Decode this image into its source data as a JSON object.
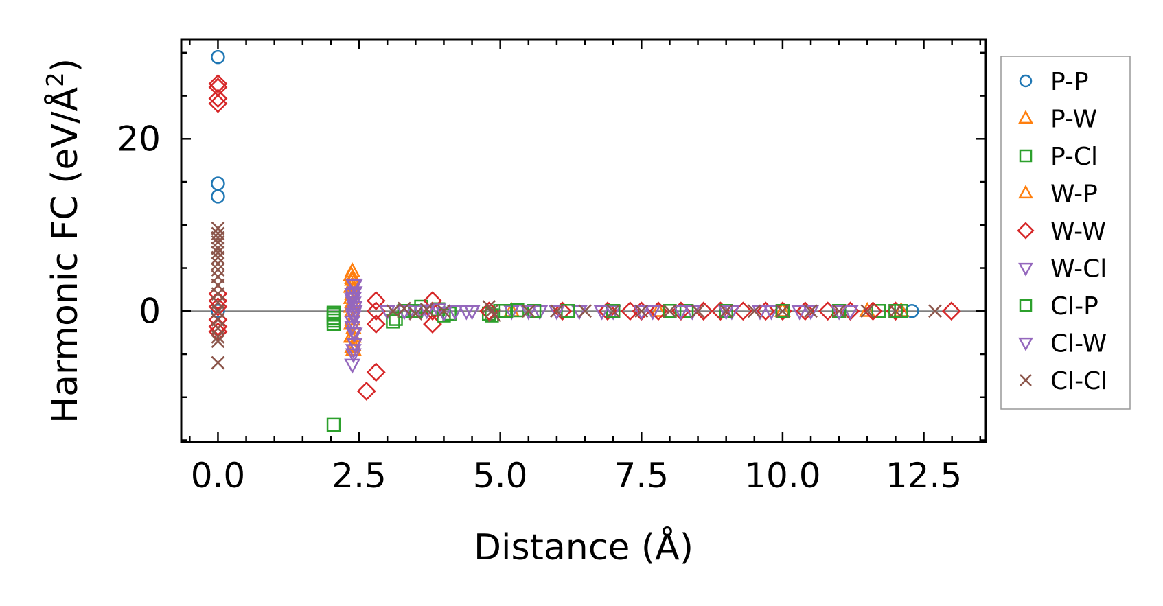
{
  "chart_data": {
    "type": "scatter",
    "title": "",
    "xlabel": "Distance (Å)",
    "ylabel_main": "Harmonic FC (eV/Å",
    "ylabel_sup": "2",
    "ylabel_close": ")",
    "xlim": [
      -0.65,
      13.6
    ],
    "ylim": [
      -15.2,
      31.5
    ],
    "xticks": [
      0.0,
      2.5,
      5.0,
      7.5,
      10.0,
      12.5
    ],
    "xtick_labels": [
      "0.0",
      "2.5",
      "5.0",
      "7.5",
      "10.0",
      "12.5"
    ],
    "yticks": [
      0,
      20
    ],
    "ytick_labels": [
      "0",
      "20"
    ],
    "zero_line": true,
    "grid": false,
    "legend_position": "right, outside plot area",
    "series": [
      {
        "name": "P-P",
        "marker": "circle",
        "color": "#1f77b4",
        "x": [
          0,
          0,
          0,
          0,
          12.29
        ],
        "y": [
          29.5,
          14.8,
          13.3,
          0.0,
          0.0
        ]
      },
      {
        "name": "P-W",
        "marker": "triangle-up",
        "color": "#ff7f0e",
        "x": [
          2.38,
          2.38,
          2.38,
          2.38,
          2.38,
          2.38,
          2.38,
          2.4,
          2.4,
          2.4,
          2.4,
          5.2,
          7.8,
          10.0,
          11.5,
          12.1
        ],
        "y": [
          4.6,
          3.8,
          3.0,
          2.0,
          1.0,
          0.0,
          -1.0,
          -2.0,
          -3.0,
          -4.0,
          -4.5,
          0.0,
          0.0,
          0.0,
          0.0,
          0.0
        ]
      },
      {
        "name": "P-Cl",
        "marker": "square",
        "color": "#2ca02c",
        "x": [
          2.05,
          2.05,
          2.05,
          2.05,
          3.1,
          3.3,
          3.6,
          3.9,
          4.1,
          4.8,
          5.0,
          5.3,
          8.3,
          11.7,
          12.1
        ],
        "y": [
          -13.2,
          -0.2,
          -0.8,
          -1.5,
          -1.2,
          0.0,
          0.5,
          0.2,
          -0.3,
          -0.3,
          0.0,
          0.1,
          0.0,
          0.0,
          0.0
        ]
      },
      {
        "name": "W-P",
        "marker": "triangle-up",
        "color": "#ff7f0e",
        "x": [
          2.36,
          2.36,
          2.36,
          2.36,
          2.36,
          2.36,
          2.38,
          2.38
        ],
        "y": [
          4.2,
          2.8,
          1.5,
          0.5,
          -1.5,
          -3.0,
          -4.2,
          3.6
        ]
      },
      {
        "name": "W-W",
        "marker": "diamond",
        "color": "#d62728",
        "x": [
          0,
          0,
          0,
          0,
          0,
          0,
          0,
          0,
          0,
          0,
          2.63,
          2.8,
          2.8,
          2.8,
          2.8,
          3.8,
          3.8,
          3.8,
          4.8,
          6.1,
          6.9,
          7.3,
          7.5,
          7.8,
          8.2,
          8.6,
          8.9,
          9.3,
          9.7,
          10.0,
          10.4,
          10.8,
          11.2,
          11.6,
          12.0,
          12.99
        ],
        "y": [
          26.4,
          26.0,
          24.7,
          24.1,
          2.0,
          1.2,
          0.5,
          -1.0,
          -1.8,
          -2.4,
          -9.3,
          -7.1,
          1.2,
          0.0,
          -1.5,
          1.2,
          -1.5,
          0.0,
          0.0,
          0.0,
          0.0,
          0.0,
          0.0,
          0.0,
          0.0,
          0.0,
          0.0,
          0.0,
          0.0,
          0.0,
          0.0,
          0.0,
          0.0,
          0.0,
          0.0,
          0.0
        ]
      },
      {
        "name": "W-Cl",
        "marker": "triangle-down",
        "color": "#9467bd",
        "x": [
          2.38,
          2.4,
          2.42,
          2.4,
          2.38,
          2.42,
          2.4,
          2.38,
          2.42,
          2.4,
          2.38,
          2.42,
          2.4,
          3.4,
          3.6,
          3.9,
          4.2,
          4.4,
          5.2,
          5.7,
          6.4,
          7.0,
          7.7,
          8.4,
          9.1,
          9.8,
          10.5,
          11.2
        ],
        "y": [
          -6.2,
          -5.0,
          -3.8,
          -2.5,
          -1.2,
          0.0,
          1.0,
          2.0,
          3.0,
          -0.6,
          -1.8,
          0.5,
          1.5,
          0.0,
          0.0,
          0.2,
          0.0,
          0.0,
          0.0,
          0.0,
          0.0,
          0.0,
          0.0,
          0.0,
          0.0,
          0.0,
          0.0,
          0.0
        ]
      },
      {
        "name": "Cl-P",
        "marker": "square",
        "color": "#2ca02c",
        "x": [
          2.05,
          2.05,
          3.15,
          3.5,
          4.0,
          4.85,
          5.1,
          5.6,
          6.2,
          7.0,
          8.0,
          9.0,
          10.0,
          11.0,
          12.0
        ],
        "y": [
          -0.4,
          -1.1,
          -0.9,
          0.0,
          -0.5,
          -0.5,
          0.0,
          0.0,
          0.0,
          0.0,
          0.0,
          0.0,
          0.0,
          0.0,
          0.0
        ]
      },
      {
        "name": "Cl-W",
        "marker": "triangle-down",
        "color": "#9467bd",
        "x": [
          2.4,
          2.42,
          2.38,
          2.4,
          2.42,
          2.4,
          3.0,
          3.3,
          3.7,
          4.0,
          4.5,
          5.5,
          6.0,
          6.8,
          7.5,
          8.2,
          9.0,
          9.6,
          10.3,
          11.0
        ],
        "y": [
          3.1,
          2.2,
          1.4,
          -0.3,
          -2.6,
          -4.5,
          0.0,
          0.0,
          0.1,
          -0.2,
          0.0,
          0.0,
          0.0,
          0.0,
          0.0,
          0.0,
          0.0,
          0.0,
          0.0,
          0.0
        ]
      },
      {
        "name": "Cl-Cl",
        "marker": "x",
        "color": "#8c564b",
        "x": [
          0,
          0,
          0,
          0,
          0,
          0,
          0,
          0,
          0,
          0,
          0,
          0,
          0,
          0,
          0,
          0,
          0,
          0,
          0,
          3.1,
          3.3,
          3.5,
          3.7,
          4.0,
          4.8,
          4.85,
          4.9,
          5.5,
          6.0,
          6.5,
          7.0,
          7.5,
          8.0,
          8.5,
          9.0,
          9.5,
          10.0,
          10.5,
          11.0,
          11.5,
          12.0,
          12.7
        ],
        "y": [
          9.6,
          9.0,
          8.5,
          8.0,
          7.3,
          6.8,
          6.2,
          5.5,
          4.8,
          4.0,
          3.0,
          2.0,
          1.0,
          0.0,
          -1.0,
          -2.0,
          -3.0,
          -3.5,
          -6.0,
          0.0,
          0.3,
          -0.3,
          0.2,
          0.0,
          0.5,
          0.0,
          -0.5,
          0.0,
          0.0,
          0.0,
          0.0,
          0.0,
          0.0,
          0.0,
          0.0,
          0.0,
          0.0,
          0.0,
          0.0,
          0.0,
          0.0,
          0.0
        ]
      }
    ]
  }
}
